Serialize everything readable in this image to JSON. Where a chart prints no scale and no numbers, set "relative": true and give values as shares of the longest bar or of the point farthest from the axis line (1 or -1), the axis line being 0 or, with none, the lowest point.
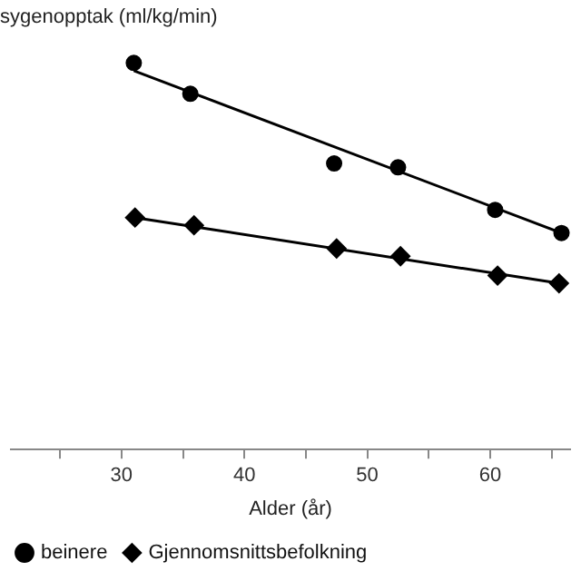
{
  "chart_data": {
    "type": "scatter",
    "relative": true,
    "ylabel": "sygenopptak (ml/kg/min)",
    "xlabel": "Alder (år)",
    "xlim": [
      21,
      66.5
    ],
    "xticks": [
      {
        "value": 25,
        "label": null
      },
      30,
      {
        "value": 35,
        "label": null
      },
      40,
      {
        "value": 45,
        "label": null
      },
      50,
      {
        "value": 55,
        "label": null
      },
      60,
      {
        "value": 65,
        "label": null
      }
    ],
    "legend": "bottom",
    "grid": false,
    "series": [
      {
        "name": "beinere",
        "color": "#000000",
        "marker": "circle",
        "x": [
          31,
          35.6,
          47.3,
          52.5,
          60.4,
          65.8
        ],
        "values": [
          1,
          0.92,
          0.74,
          0.73,
          0.62,
          0.56
        ]
      },
      {
        "name": "Gjennomsnittsbefolkning",
        "color": "#000000",
        "marker": "diamond",
        "x": [
          31.1,
          35.9,
          47.5,
          52.7,
          60.6,
          65.6
        ],
        "values": [
          0.6,
          0.58,
          0.52,
          0.5,
          0.45,
          0.43
        ]
      },
      {
        "type": "line",
        "color": "#000000",
        "marker": "none",
        "x": [
          31,
          65.8
        ],
        "values": [
          0.98,
          0.56
        ]
      },
      {
        "type": "line",
        "color": "#000000",
        "marker": "none",
        "x": [
          31.1,
          65.6
        ],
        "values": [
          0.6,
          0.43
        ]
      }
    ]
  }
}
